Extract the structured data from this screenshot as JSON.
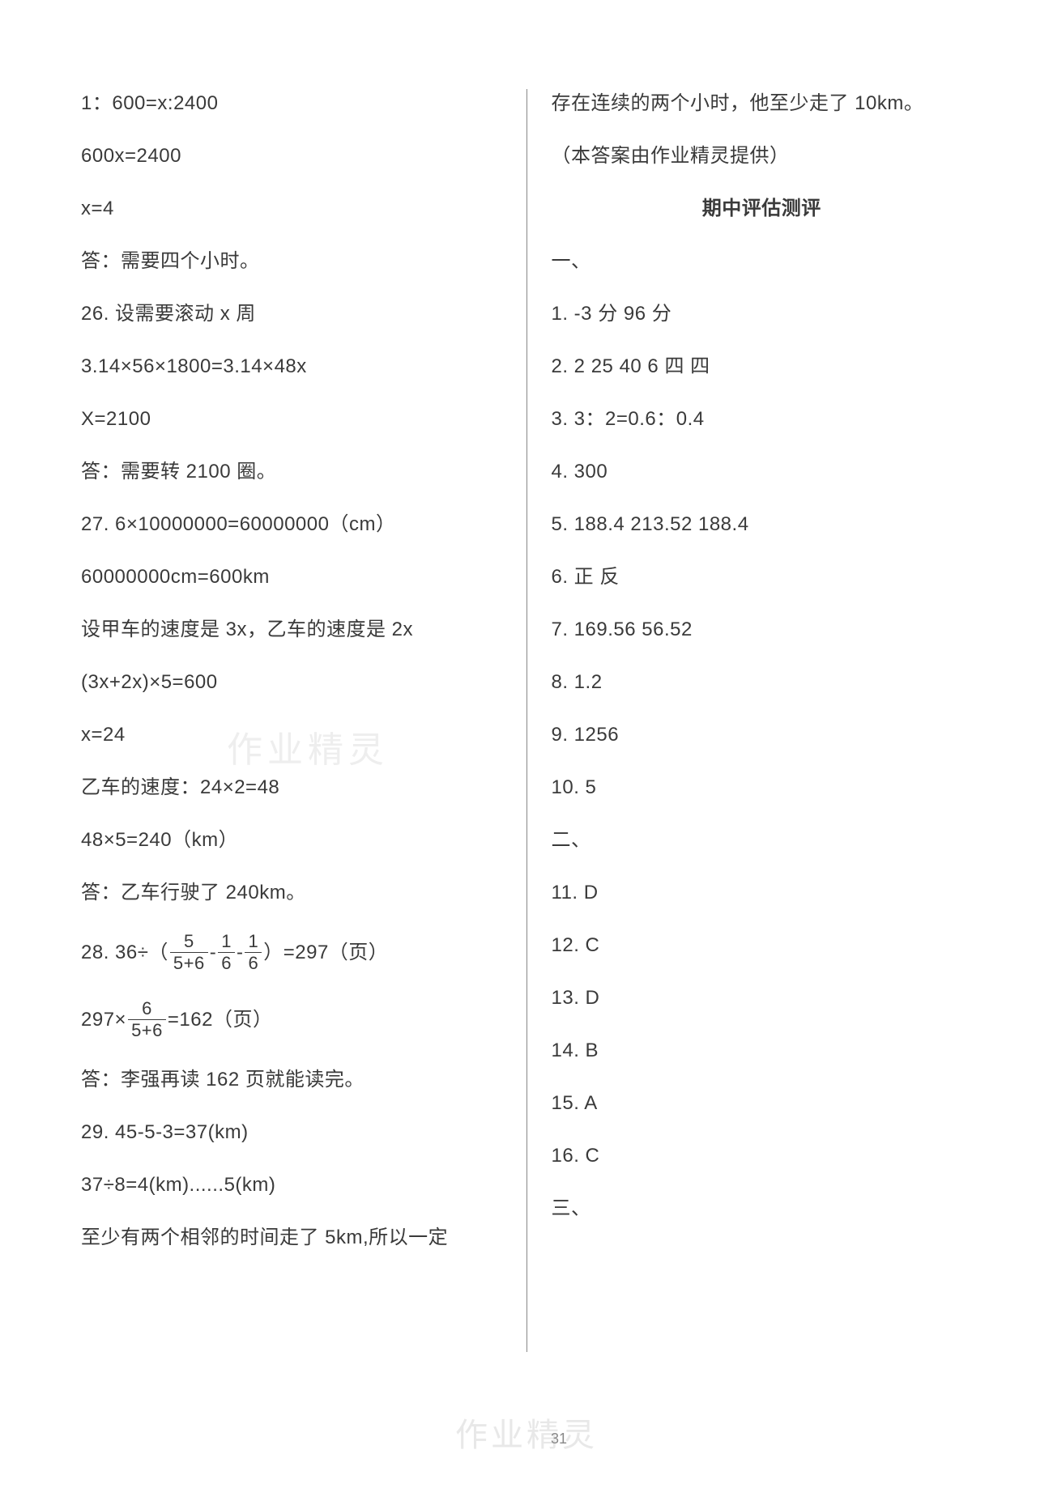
{
  "colors": {
    "background": "#ffffff",
    "text": "#3a3a3a",
    "divider": "#888888",
    "watermark": "#e8e8e8"
  },
  "typography": {
    "body_fontsize": 24,
    "line_spacing": 29,
    "letter_spacing": 0.5
  },
  "page_number": "31",
  "watermark_text": "作业精灵",
  "left_column": {
    "lines": [
      "1：600=x:2400",
      "600x=2400",
      "x=4",
      "答：需要四个小时。",
      "26. 设需要滚动 x 周",
      "3.14×56×1800=3.14×48x",
      "X=2100",
      "答：需要转 2100 圈。",
      "27. 6×10000000=60000000（cm）",
      "60000000cm=600km",
      "设甲车的速度是 3x，乙车的速度是 2x",
      "(3x+2x)×5=600",
      "x=24",
      "乙车的速度：24×2=48",
      "48×5=240（km）",
      "答：乙车行驶了 240km。"
    ],
    "eq28": {
      "prefix": "28. 36÷（",
      "frac1_num": "5",
      "frac1_den": "5+6",
      "mid1": "-",
      "frac2_num": "1",
      "frac2_den": "6",
      "mid2": "-",
      "frac3_num": "1",
      "frac3_den": "6",
      "suffix": "）=297（页）"
    },
    "eq28b": {
      "prefix": "297×",
      "frac_num": "6",
      "frac_den": "5+6",
      "suffix": "=162（页）"
    },
    "lines_after": [
      "答：李强再读 162 页就能读完。",
      "29. 45-5-3=37(km)",
      "37÷8=4(km)......5(km)",
      "至少有两个相邻的时间走了 5km,所以一定"
    ]
  },
  "right_column": {
    "lines": [
      "存在连续的两个小时，他至少走了 10km。",
      "（本答案由作业精灵提供）"
    ],
    "heading": "期中评估测评",
    "section1_label": "一、",
    "section1_items": [
      "1. -3 分   96 分",
      "2. 2   25   40   6   四   四",
      "3. 3：2=0.6：0.4",
      "4. 300",
      "5. 188.4   213.52   188.4",
      "6. 正   反",
      "7. 169.56   56.52",
      "8. 1.2",
      "9. 1256",
      "10. 5"
    ],
    "section2_label": "二、",
    "section2_items": [
      "11. D",
      "12. C",
      "13. D",
      "14. B",
      "15. A",
      "16. C"
    ],
    "section3_label": "三、"
  }
}
